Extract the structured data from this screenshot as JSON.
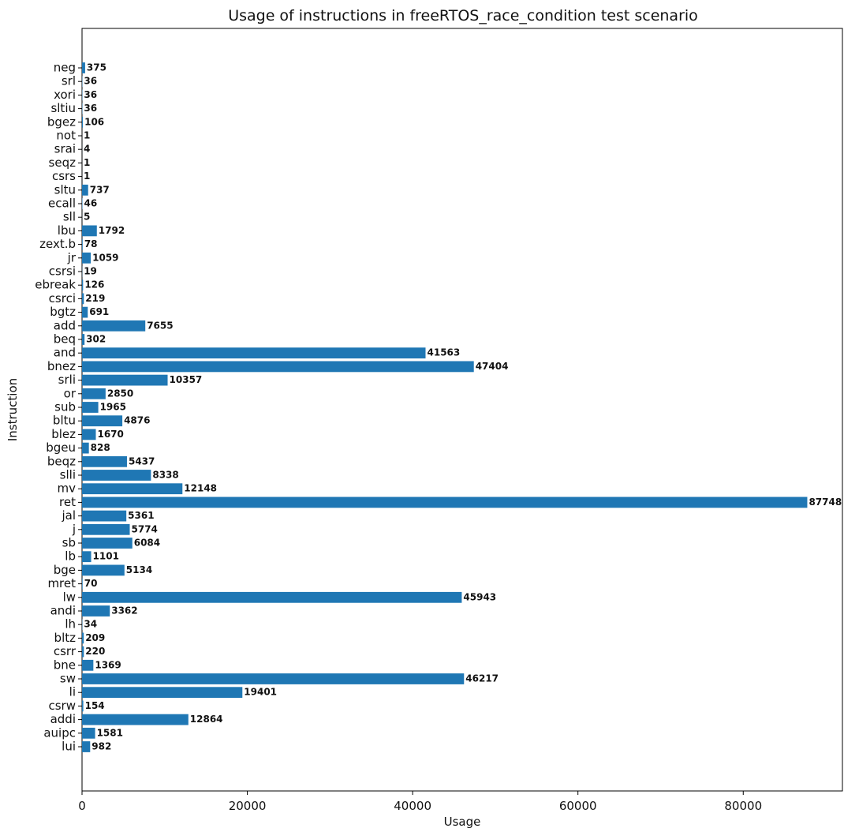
{
  "chart_data": {
    "type": "bar",
    "orientation": "horizontal",
    "title": "Usage of instructions in freeRTOS_race_condition test scenario",
    "xlabel": "Usage",
    "ylabel": "Instruction",
    "xlim": [
      0,
      92000
    ],
    "xticks": [
      0,
      20000,
      40000,
      60000,
      80000
    ],
    "xtick_labels": [
      "0",
      "20000",
      "40000",
      "60000",
      "80000"
    ],
    "grid": false,
    "bar_color": "#1f77b4",
    "categories": [
      "lui",
      "auipc",
      "addi",
      "csrw",
      "li",
      "sw",
      "bne",
      "csrr",
      "bltz",
      "lh",
      "andi",
      "lw",
      "mret",
      "bge",
      "lb",
      "sb",
      "j",
      "jal",
      "ret",
      "mv",
      "slli",
      "beqz",
      "bgeu",
      "blez",
      "bltu",
      "sub",
      "or",
      "srli",
      "bnez",
      "and",
      "beq",
      "add",
      "bgtz",
      "csrci",
      "ebreak",
      "csrsi",
      "jr",
      "zext.b",
      "lbu",
      "sll",
      "ecall",
      "sltu",
      "csrs",
      "seqz",
      "srai",
      "not",
      "bgez",
      "sltiu",
      "xori",
      "srl",
      "neg"
    ],
    "values": [
      982,
      1581,
      12864,
      154,
      19401,
      46217,
      1369,
      220,
      209,
      34,
      3362,
      45943,
      70,
      5134,
      1101,
      6084,
      5774,
      5361,
      87748,
      12148,
      8338,
      5437,
      828,
      1670,
      4876,
      1965,
      2850,
      10357,
      47404,
      41563,
      302,
      7655,
      691,
      219,
      126,
      19,
      1059,
      78,
      1792,
      5,
      46,
      737,
      1,
      1,
      4,
      1,
      106,
      36,
      36,
      36,
      375
    ],
    "value_labels": [
      "982",
      "1581",
      "12864",
      "154",
      "19401",
      "46217",
      "1369",
      "220",
      "209",
      "34",
      "3362",
      "45943",
      "70",
      "5134",
      "1101",
      "6084",
      "5774",
      "5361",
      "87748",
      "12148",
      "8338",
      "5437",
      "828",
      "1670",
      "4876",
      "1965",
      "2850",
      "10357",
      "47404",
      "41563",
      "302",
      "7655",
      "691",
      "219",
      "126",
      "19",
      "1059",
      "78",
      "1792",
      "5",
      "46",
      "737",
      "1",
      "1",
      "4",
      "1",
      "106",
      "36",
      "36",
      "36",
      "375"
    ]
  }
}
